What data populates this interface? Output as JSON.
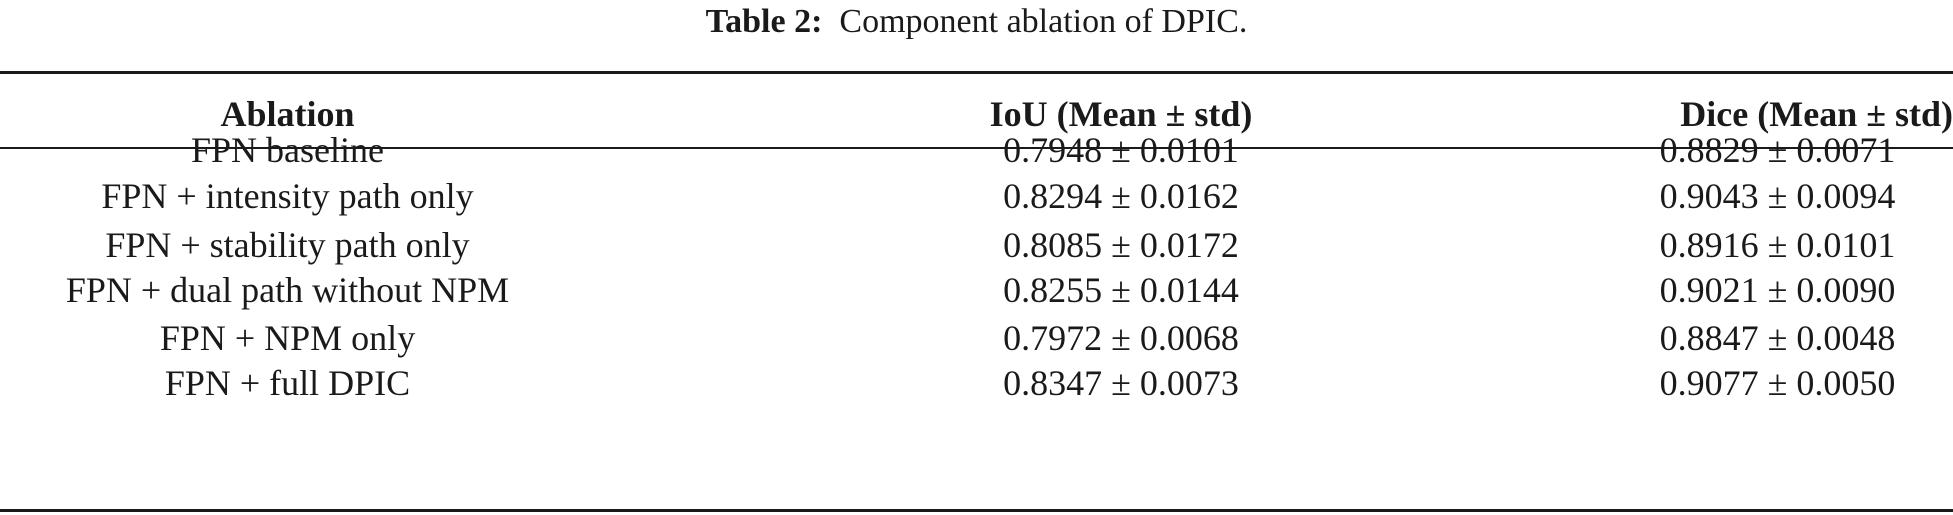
{
  "caption": {
    "label": "Table 2:",
    "text": "Component ablation of DPIC."
  },
  "table": {
    "headers": [
      "Ablation",
      "IoU (Mean ± std)",
      "Dice (Mean ± std)"
    ],
    "rows": [
      [
        "FPN baseline",
        "0.7948 ± 0.0101",
        "0.8829 ± 0.0071"
      ],
      [
        "FPN + intensity path only",
        "0.8294 ± 0.0162",
        "0.9043 ± 0.0094"
      ],
      [
        "FPN + stability path only",
        "0.8085 ± 0.0172",
        "0.8916 ± 0.0101"
      ],
      [
        "FPN + dual path without NPM",
        "0.8255 ± 0.0144",
        "0.9021 ± 0.0090"
      ],
      [
        "FPN + NPM only",
        "0.7972 ± 0.0068",
        "0.8847 ± 0.0048"
      ],
      [
        "FPN + full DPIC",
        "0.8347 ± 0.0073",
        "0.9077 ± 0.0050"
      ]
    ]
  }
}
